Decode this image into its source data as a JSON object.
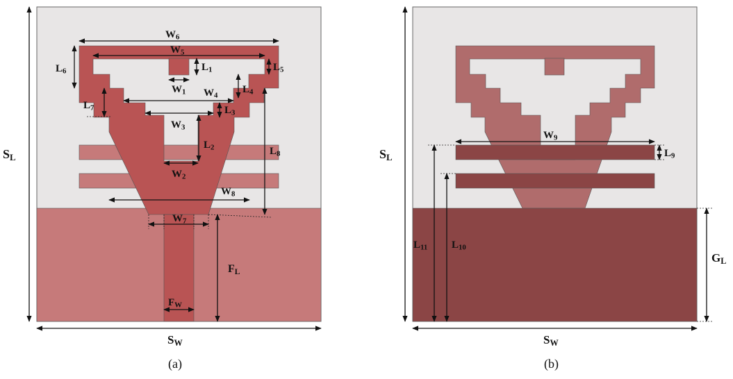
{
  "colors": {
    "substrate": "#e8e6e6",
    "patch": "#b95454",
    "ground_front": "#c67a7a",
    "ground_back": "#8b4545",
    "patch_back": "#b06c6c",
    "strips_back": "#8b4545",
    "outline": "#555555"
  },
  "panel_a": {
    "caption": "(a)",
    "labels": {
      "W6": "W6",
      "W5": "W5",
      "W4": "W4",
      "W3": "W3",
      "W2": "W2",
      "W1": "W1",
      "W7": "W7",
      "W8": "W8",
      "FW": "FW",
      "SW": "SW",
      "L1": "L1",
      "L2": "L2",
      "L3": "L3",
      "L4": "L4",
      "L5": "L5",
      "L6": "L6",
      "L7": "L7",
      "L8": "L8",
      "SL": "SL",
      "FL": "FL"
    }
  },
  "panel_b": {
    "caption": "(b)",
    "labels": {
      "W9": "W9",
      "L9": "L9",
      "L10": "L10",
      "L11": "L11",
      "SL": "SL",
      "SW": "SW",
      "GL": "GL"
    }
  }
}
